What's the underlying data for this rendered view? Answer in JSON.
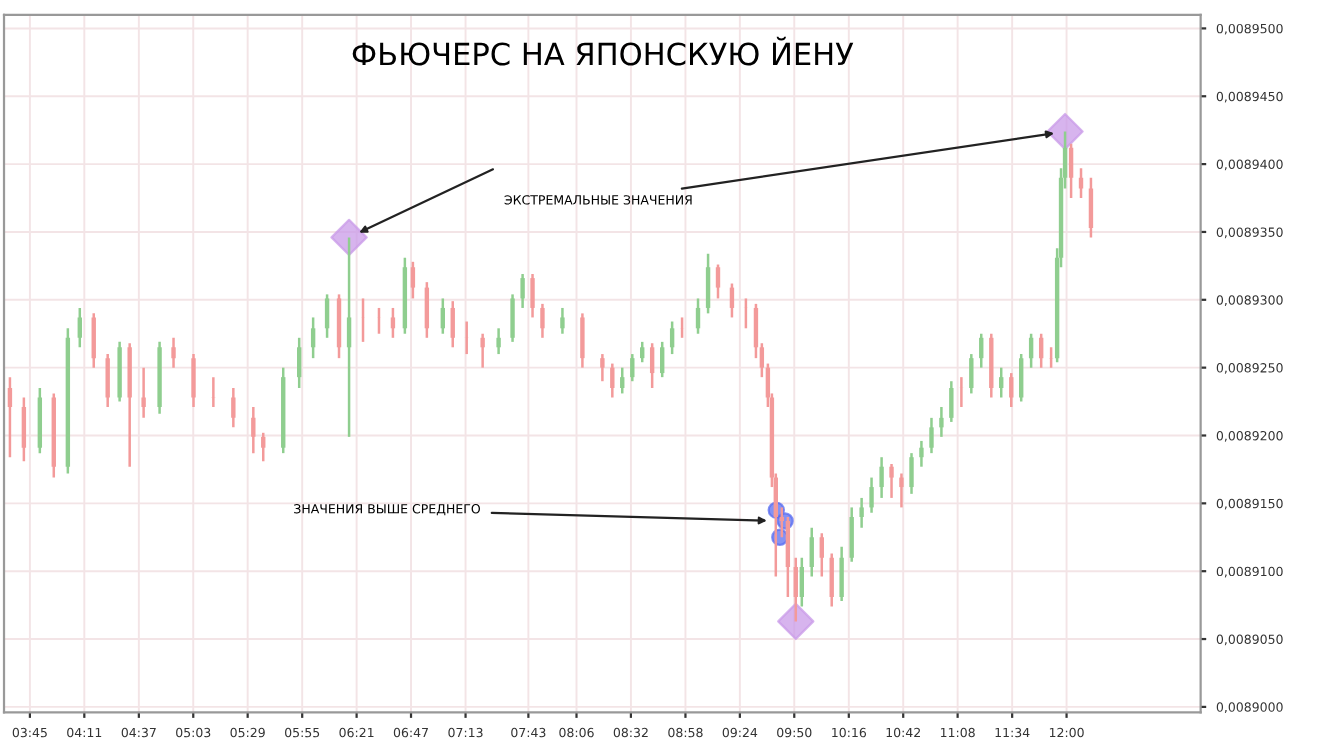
{
  "chart_data": {
    "type": "candlestick",
    "title": "ФЬЮЧЕРС НА ЯПОНСКУЮ ЙЕНУ",
    "x": [
      3.591,
      3.702,
      3.829,
      3.94,
      4.052,
      4.147,
      4.258,
      4.369,
      4.464,
      4.544,
      4.655,
      4.782,
      4.893,
      5.052,
      5.21,
      5.369,
      5.528,
      5.607,
      5.766,
      5.893,
      6.004,
      6.115,
      6.21,
      6.29,
      6.401,
      6.528,
      6.639,
      6.734,
      6.798,
      6.909,
      7.036,
      7.115,
      7.226,
      7.353,
      7.48,
      7.591,
      7.671,
      7.75,
      7.829,
      7.988,
      8.147,
      8.306,
      8.385,
      8.464,
      8.544,
      8.623,
      8.702,
      8.782,
      8.861,
      8.94,
      9.067,
      9.147,
      9.226,
      9.337,
      9.448,
      9.528,
      9.575,
      9.623,
      9.655,
      9.686,
      9.734,
      9.782,
      9.845,
      9.893,
      9.972,
      10.052,
      10.131,
      10.21,
      10.29,
      10.369,
      10.448,
      10.528,
      10.607,
      10.686,
      10.766,
      10.845,
      10.925,
      11.004,
      11.083,
      11.163,
      11.242,
      11.321,
      11.401,
      11.48,
      11.56,
      11.639,
      11.718,
      11.798,
      11.877,
      11.925,
      11.956,
      11.988,
      12.036,
      12.115,
      12.194
    ],
    "ohlc": [
      [
        0.0089235,
        0.0089243,
        0.0089184,
        0.0089221
      ],
      [
        0.0089221,
        0.0089228,
        0.0089181,
        0.0089191
      ],
      [
        0.0089191,
        0.0089235,
        0.0089187,
        0.0089228
      ],
      [
        0.0089228,
        0.0089231,
        0.0089169,
        0.0089177
      ],
      [
        0.0089177,
        0.0089279,
        0.0089172,
        0.0089272
      ],
      [
        0.0089272,
        0.0089294,
        0.0089265,
        0.0089287
      ],
      [
        0.0089287,
        0.008929,
        0.008925,
        0.0089257
      ],
      [
        0.0089257,
        0.008926,
        0.0089221,
        0.0089228
      ],
      [
        0.0089228,
        0.0089269,
        0.0089225,
        0.0089265
      ],
      [
        0.0089265,
        0.0089268,
        0.0089177,
        0.0089228
      ],
      [
        0.0089228,
        0.008925,
        0.0089213,
        0.0089221
      ],
      [
        0.0089221,
        0.0089269,
        0.0089216,
        0.0089265
      ],
      [
        0.0089265,
        0.0089272,
        0.008925,
        0.0089257
      ],
      [
        0.0089257,
        0.008926,
        0.0089221,
        0.0089228
      ],
      [
        0.0089228,
        0.0089243,
        0.0089221,
        0.0089228
      ],
      [
        0.0089228,
        0.0089235,
        0.0089206,
        0.0089213
      ],
      [
        0.0089213,
        0.0089221,
        0.0089187,
        0.0089199
      ],
      [
        0.0089199,
        0.0089202,
        0.0089181,
        0.0089191
      ],
      [
        0.0089191,
        0.008925,
        0.0089187,
        0.0089243
      ],
      [
        0.0089243,
        0.0089272,
        0.0089235,
        0.0089265
      ],
      [
        0.0089265,
        0.0089287,
        0.0089257,
        0.0089279
      ],
      [
        0.0089279,
        0.0089304,
        0.0089272,
        0.0089301
      ],
      [
        0.0089301,
        0.0089304,
        0.0089257,
        0.0089265
      ],
      [
        0.0089265,
        0.0089346,
        0.0089199,
        0.0089287
      ],
      [
        0.0089287,
        0.0089301,
        0.0089269,
        0.0089287
      ],
      [
        0.0089287,
        0.0089294,
        0.0089275,
        0.0089287
      ],
      [
        0.0089287,
        0.0089294,
        0.0089272,
        0.0089279
      ],
      [
        0.0089279,
        0.0089331,
        0.0089275,
        0.0089324
      ],
      [
        0.0089324,
        0.0089328,
        0.0089301,
        0.0089309
      ],
      [
        0.0089309,
        0.0089313,
        0.0089272,
        0.0089279
      ],
      [
        0.0089279,
        0.0089301,
        0.0089275,
        0.0089294
      ],
      [
        0.0089294,
        0.0089299,
        0.0089265,
        0.0089272
      ],
      [
        0.0089272,
        0.0089284,
        0.008926,
        0.0089272
      ],
      [
        0.0089272,
        0.0089275,
        0.008925,
        0.0089265
      ],
      [
        0.0089265,
        0.0089279,
        0.008926,
        0.0089272
      ],
      [
        0.0089272,
        0.0089304,
        0.0089269,
        0.0089301
      ],
      [
        0.0089301,
        0.0089319,
        0.0089294,
        0.0089316
      ],
      [
        0.0089316,
        0.0089319,
        0.0089287,
        0.0089294
      ],
      [
        0.0089294,
        0.0089297,
        0.0089272,
        0.0089279
      ],
      [
        0.0089279,
        0.0089294,
        0.0089275,
        0.0089287
      ],
      [
        0.0089287,
        0.008929,
        0.008925,
        0.0089257
      ],
      [
        0.0089257,
        0.008926,
        0.008924,
        0.008925
      ],
      [
        0.008925,
        0.0089253,
        0.0089228,
        0.0089235
      ],
      [
        0.0089235,
        0.008925,
        0.0089231,
        0.0089243
      ],
      [
        0.0089243,
        0.008926,
        0.008924,
        0.0089257
      ],
      [
        0.0089257,
        0.0089269,
        0.0089254,
        0.0089265
      ],
      [
        0.0089265,
        0.0089268,
        0.0089235,
        0.0089246
      ],
      [
        0.0089246,
        0.0089269,
        0.0089243,
        0.0089265
      ],
      [
        0.0089265,
        0.0089284,
        0.008926,
        0.0089279
      ],
      [
        0.0089279,
        0.0089287,
        0.0089272,
        0.0089279
      ],
      [
        0.0089279,
        0.0089301,
        0.0089275,
        0.0089294
      ],
      [
        0.0089294,
        0.0089334,
        0.008929,
        0.0089324
      ],
      [
        0.0089324,
        0.0089326,
        0.0089301,
        0.0089309
      ],
      [
        0.0089309,
        0.0089312,
        0.0089287,
        0.0089294
      ],
      [
        0.0089294,
        0.0089301,
        0.0089279,
        0.0089294
      ],
      [
        0.0089294,
        0.0089297,
        0.0089257,
        0.0089265
      ],
      [
        0.0089265,
        0.0089268,
        0.0089243,
        0.008925
      ],
      [
        0.008925,
        0.0089253,
        0.0089221,
        0.0089228
      ],
      [
        0.0089228,
        0.0089231,
        0.0089162,
        0.0089169
      ],
      [
        0.0089169,
        0.0089172,
        0.0089096,
        0.008914
      ],
      [
        0.008914,
        0.0089147,
        0.0089125,
        0.0089137
      ],
      [
        0.0089137,
        0.008914,
        0.0089081,
        0.0089103
      ],
      [
        0.0089103,
        0.008911,
        0.0089063,
        0.0089081
      ],
      [
        0.0089081,
        0.008911,
        0.0089074,
        0.0089103
      ],
      [
        0.0089103,
        0.0089132,
        0.0089096,
        0.0089125
      ],
      [
        0.0089125,
        0.0089128,
        0.0089096,
        0.008911
      ],
      [
        0.008911,
        0.0089113,
        0.0089074,
        0.0089081
      ],
      [
        0.0089081,
        0.0089118,
        0.0089078,
        0.008911
      ],
      [
        0.008911,
        0.0089147,
        0.0089107,
        0.008914
      ],
      [
        0.008914,
        0.0089154,
        0.0089132,
        0.0089147
      ],
      [
        0.0089147,
        0.0089169,
        0.0089143,
        0.0089162
      ],
      [
        0.0089162,
        0.0089184,
        0.0089154,
        0.0089177
      ],
      [
        0.0089177,
        0.0089179,
        0.0089154,
        0.0089169
      ],
      [
        0.0089169,
        0.0089172,
        0.0089147,
        0.0089162
      ],
      [
        0.0089162,
        0.0089187,
        0.0089157,
        0.0089184
      ],
      [
        0.0089184,
        0.0089196,
        0.0089177,
        0.0089191
      ],
      [
        0.0089191,
        0.0089213,
        0.0089187,
        0.0089206
      ],
      [
        0.0089206,
        0.0089221,
        0.0089199,
        0.0089213
      ],
      [
        0.0089213,
        0.008924,
        0.008921,
        0.0089235
      ],
      [
        0.0089235,
        0.0089243,
        0.0089221,
        0.0089235
      ],
      [
        0.0089235,
        0.008926,
        0.0089231,
        0.0089257
      ],
      [
        0.0089257,
        0.0089275,
        0.008925,
        0.0089272
      ],
      [
        0.0089272,
        0.0089275,
        0.0089228,
        0.0089235
      ],
      [
        0.0089235,
        0.008925,
        0.0089228,
        0.0089243
      ],
      [
        0.0089243,
        0.0089246,
        0.0089221,
        0.0089228
      ],
      [
        0.0089228,
        0.008926,
        0.0089225,
        0.0089257
      ],
      [
        0.0089257,
        0.0089275,
        0.008925,
        0.0089272
      ],
      [
        0.0089272,
        0.0089275,
        0.008925,
        0.0089257
      ],
      [
        0.0089257,
        0.0089265,
        0.008925,
        0.0089257
      ],
      [
        0.0089257,
        0.0089338,
        0.0089254,
        0.0089331
      ],
      [
        0.0089331,
        0.0089397,
        0.0089324,
        0.008939
      ],
      [
        0.008939,
        0.0089424,
        0.0089382,
        0.0089412
      ],
      [
        0.0089412,
        0.0089415,
        0.0089375,
        0.008939
      ],
      [
        0.008939,
        0.0089397,
        0.0089375,
        0.0089382
      ],
      [
        0.0089382,
        0.008939,
        0.0089346,
        0.0089353
      ]
    ],
    "colors": [
      "#f39a9a",
      "#f39a9a",
      "#8fce8f",
      "#f39a9a",
      "#8fce8f",
      "#8fce8f",
      "#f39a9a",
      "#f39a9a",
      "#8fce8f",
      "#f39a9a",
      "#f39a9a",
      "#8fce8f",
      "#f39a9a",
      "#f39a9a",
      "#f39a9a",
      "#f39a9a",
      "#f39a9a",
      "#f39a9a",
      "#8fce8f",
      "#8fce8f",
      "#8fce8f",
      "#8fce8f",
      "#f39a9a",
      "#8fce8f",
      "#f39a9a",
      "#f39a9a",
      "#f39a9a",
      "#8fce8f",
      "#f39a9a",
      "#f39a9a",
      "#8fce8f",
      "#f39a9a",
      "#f39a9a",
      "#f39a9a",
      "#8fce8f",
      "#8fce8f",
      "#8fce8f",
      "#f39a9a",
      "#f39a9a",
      "#8fce8f",
      "#f39a9a",
      "#f39a9a",
      "#f39a9a",
      "#8fce8f",
      "#8fce8f",
      "#8fce8f",
      "#f39a9a",
      "#8fce8f",
      "#8fce8f",
      "#f39a9a",
      "#8fce8f",
      "#8fce8f",
      "#f39a9a",
      "#f39a9a",
      "#f39a9a",
      "#f39a9a",
      "#f39a9a",
      "#f39a9a",
      "#f39a9a",
      "#f39a9a",
      "#f39a9a",
      "#f39a9a",
      "#f39a9a",
      "#8fce8f",
      "#8fce8f",
      "#f39a9a",
      "#f39a9a",
      "#8fce8f",
      "#8fce8f",
      "#8fce8f",
      "#8fce8f",
      "#8fce8f",
      "#f39a9a",
      "#f39a9a",
      "#8fce8f",
      "#8fce8f",
      "#8fce8f",
      "#8fce8f",
      "#8fce8f",
      "#f39a9a",
      "#8fce8f",
      "#8fce8f",
      "#f39a9a",
      "#8fce8f",
      "#f39a9a",
      "#8fce8f",
      "#8fce8f",
      "#f39a9a",
      "#f39a9a",
      "#8fce8f",
      "#8fce8f",
      "#8fce8f",
      "#f39a9a",
      "#f39a9a",
      "#f39a9a"
    ],
    "series": [
      {
        "type": "scatter",
        "marker": "diamond",
        "color": "#c99be8",
        "x": [
          6.29,
          11.988,
          9.845
        ],
        "values": [
          0.0089346,
          0.0089424,
          0.0089063
        ]
      },
      {
        "type": "scatter",
        "marker": "circle",
        "color": "#5b6ef0",
        "x": [
          9.69,
          9.76,
          9.718
        ],
        "values": [
          0.0089145,
          0.0089137,
          0.0089125
        ]
      }
    ],
    "annotations": [
      {
        "text": "ЭКСТРЕМАЛЬНЫЕ ЗНАЧЕНИЯ",
        "x": 11.988,
        "y": 0.0089424
      },
      {
        "text": "ЗНАЧЕНИЯ ВЫШЕ СРЕДНЕГО",
        "x": 9.703,
        "y": 0.0089137
      }
    ],
    "xlim": [
      3.544,
      13.067
    ],
    "xticks": [
      {
        "value": 3.75,
        "label": "03:45"
      },
      {
        "value": 4.183,
        "label": "04:11"
      },
      {
        "value": 4.617,
        "label": "04:37"
      },
      {
        "value": 5.05,
        "label": "05:03"
      },
      {
        "value": 5.483,
        "label": "05:29"
      },
      {
        "value": 5.917,
        "label": "05:55"
      },
      {
        "value": 6.35,
        "label": "06:21"
      },
      {
        "value": 6.783,
        "label": "06:47"
      },
      {
        "value": 7.217,
        "label": "07:13"
      },
      {
        "value": 7.717,
        "label": "07:43"
      },
      {
        "value": 8.1,
        "label": "08:06"
      },
      {
        "value": 8.533,
        "label": "08:32"
      },
      {
        "value": 8.967,
        "label": "08:58"
      },
      {
        "value": 9.4,
        "label": "09:24"
      },
      {
        "value": 9.833,
        "label": "09:50"
      },
      {
        "value": 10.267,
        "label": "10:16"
      },
      {
        "value": 10.7,
        "label": "10:42"
      },
      {
        "value": 11.133,
        "label": "11:08"
      },
      {
        "value": 11.567,
        "label": "11:34"
      },
      {
        "value": 12.0,
        "label": "12:00"
      }
    ],
    "ylim": [
      0.0088996,
      0.008951
    ],
    "yticks": [
      {
        "value": 0.0089,
        "label": "0,0089000"
      },
      {
        "value": 0.008905,
        "label": "0,0089050"
      },
      {
        "value": 0.00891,
        "label": "0,0089100"
      },
      {
        "value": 0.008915,
        "label": "0,0089150"
      },
      {
        "value": 0.00892,
        "label": "0,0089200"
      },
      {
        "value": 0.008925,
        "label": "0,0089250"
      },
      {
        "value": 0.00893,
        "label": "0,0089300"
      },
      {
        "value": 0.008935,
        "label": "0,0089350"
      },
      {
        "value": 0.00894,
        "label": "0,0089400"
      },
      {
        "value": 0.008945,
        "label": "0,0089450"
      },
      {
        "value": 0.00895,
        "label": "0,0089500"
      }
    ],
    "grid": true
  }
}
